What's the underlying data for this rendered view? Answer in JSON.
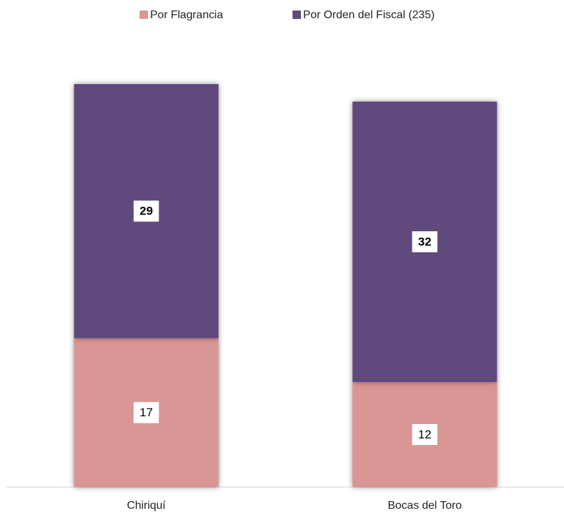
{
  "chart_data": {
    "type": "stacked_bar",
    "categories": [
      "Chiriquí",
      "Bocas del Toro"
    ],
    "series": [
      {
        "name": "Por Flagrancia",
        "color": "#d99694",
        "values": [
          17,
          12
        ]
      },
      {
        "name": "Por Orden del Fiscal (235)",
        "color": "#604a7b",
        "values": [
          29,
          32
        ]
      }
    ],
    "legend": "top"
  }
}
